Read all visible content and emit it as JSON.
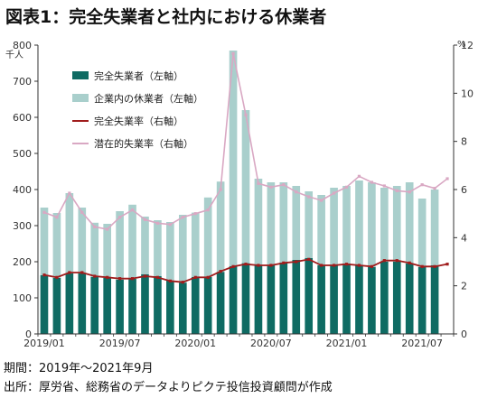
{
  "title": "図表1：完全失業者と社内における休業者",
  "footer": {
    "period": "期間：2019年～2021年9月",
    "source": "出所：厚労省、総務省のデータよりピクテ投信投資顧問が作成"
  },
  "colors": {
    "unemployed_bar": "#0f6b63",
    "furloughed_bar": "#a9cfcc",
    "unemployment_rate_line": "#a01c1c",
    "latent_rate_line": "#d9a8c3",
    "axis": "#333333",
    "tick_text": "#333333"
  },
  "chart_data": {
    "type": "bar+line",
    "left_axis": {
      "unit": "千人",
      "ylim": [
        0,
        800
      ],
      "ticks": [
        "0",
        "100",
        "200",
        "300",
        "400",
        "500",
        "600",
        "700",
        "800"
      ]
    },
    "right_axis": {
      "unit": "%",
      "ylim": [
        0,
        12
      ],
      "ticks": [
        "0",
        "2",
        "4",
        "6",
        "8",
        "10",
        "12"
      ]
    },
    "x_tick_labels": [
      {
        "index": 0,
        "label": "2019/01"
      },
      {
        "index": 6,
        "label": "2019/07"
      },
      {
        "index": 12,
        "label": "2020/01"
      },
      {
        "index": 18,
        "label": "2020/07"
      },
      {
        "index": 24,
        "label": "2021/01"
      },
      {
        "index": 30,
        "label": "2021/07"
      }
    ],
    "categories": [
      "2019/01",
      "2019/02",
      "2019/03",
      "2019/04",
      "2019/05",
      "2019/06",
      "2019/07",
      "2019/08",
      "2019/09",
      "2019/10",
      "2019/11",
      "2019/12",
      "2020/01",
      "2020/02",
      "2020/03",
      "2020/04",
      "2020/05",
      "2020/06",
      "2020/07",
      "2020/08",
      "2020/09",
      "2020/10",
      "2020/11",
      "2020/12",
      "2021/01",
      "2021/02",
      "2021/03",
      "2021/04",
      "2021/05",
      "2021/06",
      "2021/07",
      "2021/08",
      "2021/09"
    ],
    "stacked": true,
    "series": [
      {
        "name": "完全失業者（左軸）",
        "kind": "bar",
        "axis": "left",
        "values": [
          163,
          155,
          168,
          168,
          158,
          155,
          150,
          153,
          165,
          160,
          148,
          142,
          158,
          158,
          172,
          188,
          196,
          190,
          190,
          198,
          205,
          210,
          190,
          190,
          195,
          190,
          185,
          200,
          200,
          195,
          185,
          190,
          0
        ]
      },
      {
        "name": "企業内の休業者（左軸）",
        "kind": "bar",
        "axis": "left",
        "values": [
          187,
          180,
          222,
          182,
          150,
          150,
          190,
          205,
          160,
          155,
          162,
          188,
          178,
          220,
          250,
          597,
          424,
          240,
          230,
          222,
          205,
          185,
          195,
          215,
          215,
          235,
          235,
          205,
          210,
          225,
          190,
          210,
          0
        ]
      },
      {
        "name": "完全失業率（右軸）",
        "kind": "line",
        "axis": "right",
        "values": [
          2.45,
          2.35,
          2.55,
          2.55,
          2.4,
          2.35,
          2.3,
          2.3,
          2.4,
          2.35,
          2.2,
          2.15,
          2.35,
          2.35,
          2.6,
          2.8,
          2.9,
          2.85,
          2.85,
          2.95,
          3.0,
          3.1,
          2.85,
          2.85,
          2.9,
          2.85,
          2.8,
          3.05,
          3.05,
          2.95,
          2.8,
          2.8,
          2.9
        ]
      },
      {
        "name": "潜在的失業率（右軸）",
        "kind": "line",
        "axis": "right",
        "values": [
          5.05,
          4.85,
          5.85,
          5.05,
          4.45,
          4.35,
          4.85,
          5.15,
          4.75,
          4.6,
          4.55,
          4.85,
          5.0,
          5.15,
          6.0,
          11.65,
          9.1,
          6.25,
          6.1,
          6.2,
          5.9,
          5.7,
          5.55,
          5.85,
          6.1,
          6.55,
          6.3,
          6.15,
          5.95,
          5.9,
          6.2,
          6.05,
          6.45
        ]
      }
    ],
    "legend_placement": "top-left",
    "grid": false
  }
}
